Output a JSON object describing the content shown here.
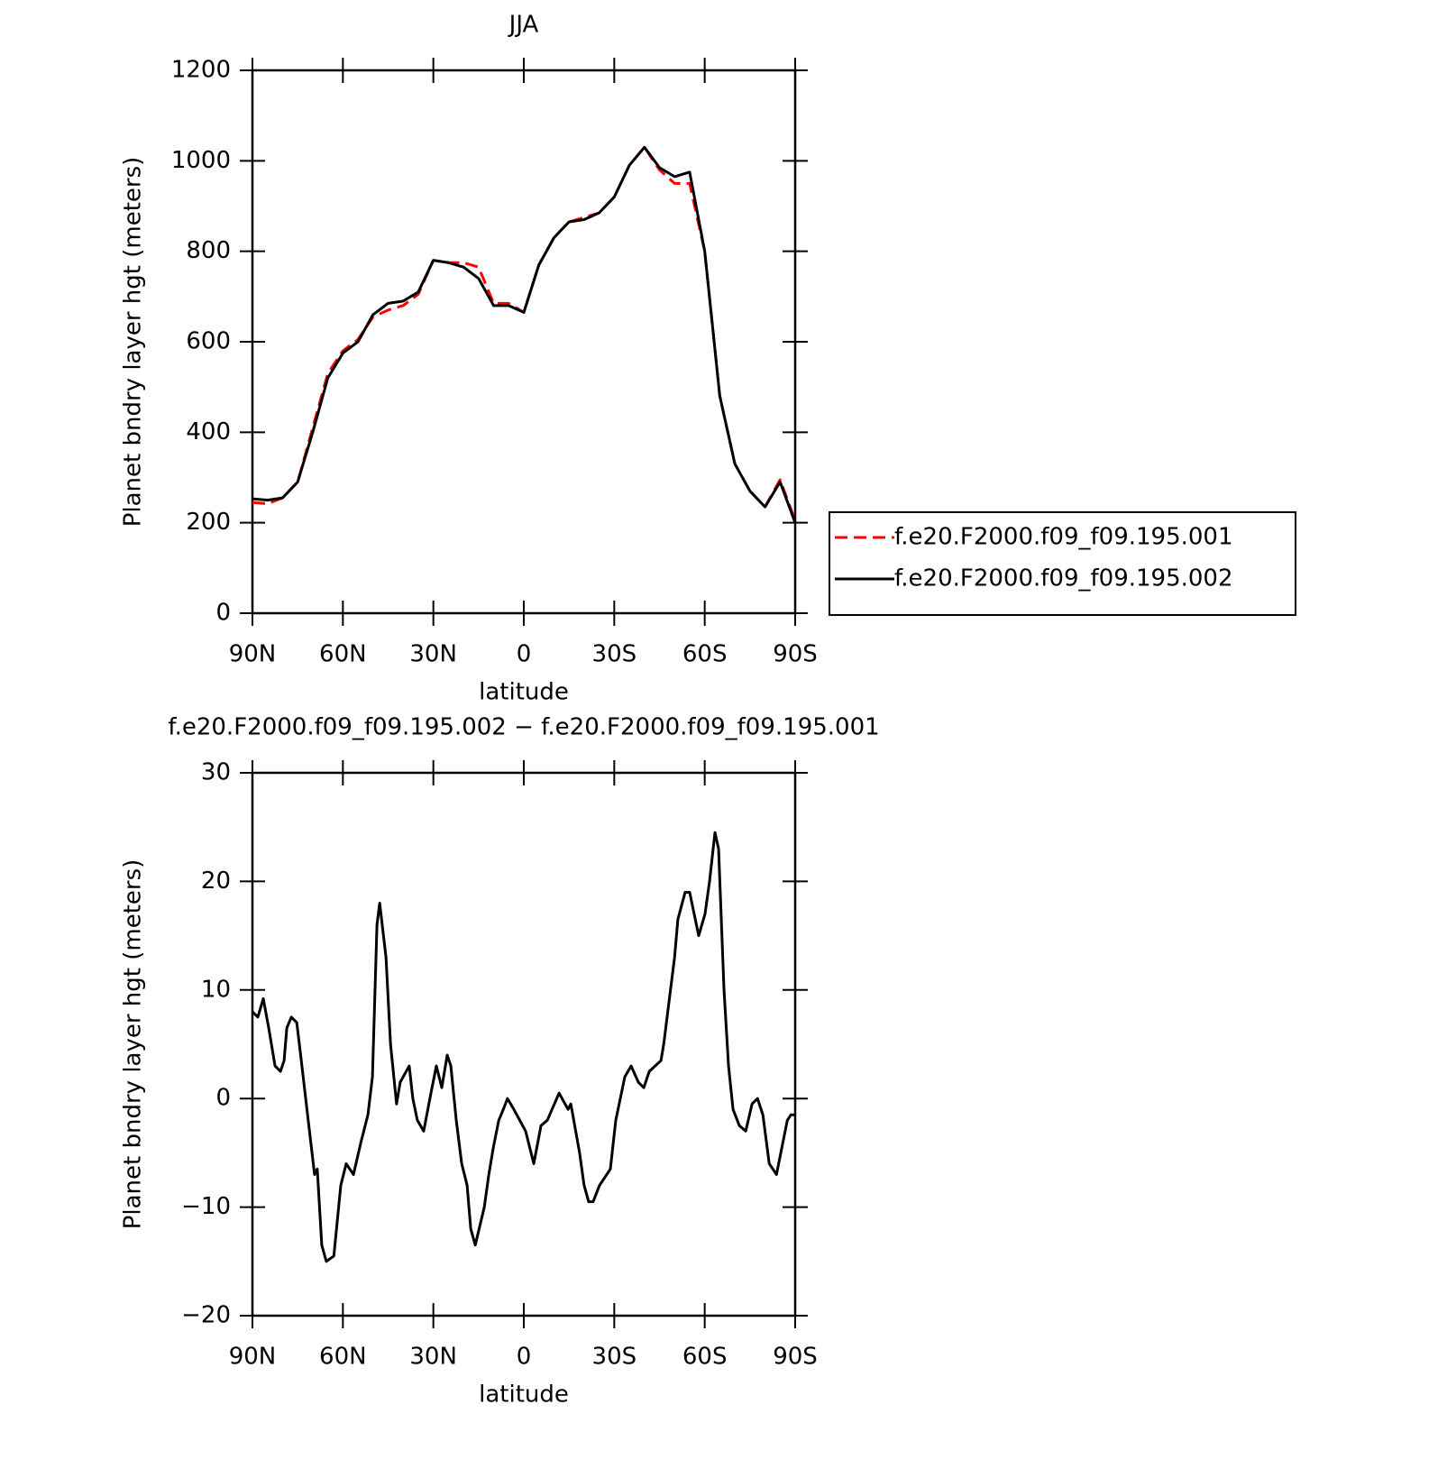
{
  "chart_data": [
    {
      "type": "line",
      "title": "JJA",
      "x_label": "latitude",
      "y_label": "Planet bndry layer hgt (meters)",
      "xlim": [
        90,
        -90
      ],
      "xticks": [
        {
          "value": 90,
          "label": "90N"
        },
        {
          "value": 60,
          "label": "60N"
        },
        {
          "value": 30,
          "label": "30N"
        },
        0,
        {
          "value": -30,
          "label": "30S"
        },
        {
          "value": -60,
          "label": "60S"
        },
        {
          "value": -90,
          "label": "90S"
        }
      ],
      "ylim": [
        0,
        1200
      ],
      "yticks": [
        0,
        200,
        400,
        600,
        800,
        1000,
        1200
      ],
      "legend": "right",
      "x": [
        90,
        85,
        80,
        75,
        70,
        65,
        60,
        55,
        50,
        45,
        40,
        35,
        30,
        25,
        20,
        15,
        10,
        5,
        0,
        -5,
        -10,
        -15,
        -20,
        -25,
        -30,
        -35,
        -40,
        -45,
        -50,
        -55,
        -60,
        -65,
        -70,
        -75,
        -80,
        -85,
        -90
      ],
      "series": [
        {
          "name": "f.e20.F2000.f09_f09.195.001",
          "color": "#ff0000",
          "linestyle": "dashed",
          "values": [
            245,
            242,
            255,
            290,
            410,
            530,
            580,
            605,
            655,
            670,
            680,
            705,
            780,
            775,
            775,
            765,
            685,
            685,
            665,
            770,
            830,
            865,
            875,
            885,
            920,
            990,
            1030,
            980,
            950,
            950,
            800,
            480,
            330,
            270,
            235,
            295,
            205
          ]
        },
        {
          "name": "f.e20.F2000.f09_f09.195.002",
          "color": "#000000",
          "linestyle": "solid",
          "values": [
            253,
            250,
            255,
            290,
            400,
            520,
            575,
            600,
            660,
            685,
            690,
            710,
            780,
            775,
            765,
            740,
            680,
            680,
            665,
            770,
            830,
            865,
            870,
            885,
            920,
            990,
            1030,
            985,
            965,
            975,
            800,
            480,
            330,
            270,
            235,
            290,
            200
          ]
        }
      ]
    },
    {
      "type": "line",
      "title": "f.e20.F2000.f09_f09.195.002 − f.e20.F2000.f09_f09.195.001",
      "x_label": "latitude",
      "y_label": "Planet bndry layer hgt (meters)",
      "xlim": [
        90,
        -90
      ],
      "xticks": [
        {
          "value": 90,
          "label": "90N"
        },
        {
          "value": 60,
          "label": "60N"
        },
        {
          "value": 30,
          "label": "30N"
        },
        0,
        {
          "value": -30,
          "label": "30S"
        },
        {
          "value": -60,
          "label": "60S"
        },
        {
          "value": -90,
          "label": "90S"
        }
      ],
      "ylim": [
        -20,
        30
      ],
      "yticks": [
        {
          "value": -20,
          "label": "−20"
        },
        {
          "value": -10,
          "label": "−10"
        },
        0,
        10,
        20,
        30
      ],
      "x": [
        90,
        88.2,
        86.4,
        84.6,
        82.5,
        80.7,
        79.5,
        78.6,
        77.1,
        75.3,
        73.8,
        71.5,
        69.4,
        68.5,
        67,
        65.5,
        63,
        60.7,
        58.9,
        56.5,
        54,
        51.7,
        50.2,
        48.7,
        47.8,
        45.7,
        44.2,
        42.2,
        41,
        38,
        36.8,
        35.3,
        33.2,
        30.8,
        29,
        27.2,
        25.4,
        24.2,
        22.4,
        20.6,
        18.8,
        17.6,
        16.1,
        13.1,
        11.6,
        10.1,
        8.3,
        6.8,
        5.4,
        3.3,
        -0.6,
        -3.3,
        -5.7,
        -7.8,
        -11.7,
        -14.7,
        -15.6,
        -18.5,
        -20,
        -21.5,
        -23,
        -25.1,
        -28.7,
        -30.5,
        -33.5,
        -35.6,
        -38,
        -39.8,
        -41.6,
        -45.5,
        -46.4,
        -48.2,
        -50,
        -51.1,
        -53.5,
        -55,
        -58,
        -60.1,
        -61.6,
        -63.4,
        -64.6,
        -66.4,
        -67.9,
        -69.4,
        -71.5,
        -73.6,
        -75.7,
        -77.5,
        -79.3,
        -81.4,
        -83.8,
        -87.4,
        -88.6,
        -90
      ],
      "series": [
        {
          "color": "#000000",
          "linestyle": "solid",
          "values": [
            8,
            7.5,
            9.2,
            6.5,
            3,
            2.5,
            3.5,
            6.5,
            7.5,
            7,
            3.5,
            -2,
            -7,
            -6.5,
            -13.5,
            -15,
            -14.5,
            -8,
            -6,
            -7,
            -4,
            -1.5,
            2,
            16,
            18,
            13,
            5,
            -0.5,
            1.5,
            3,
            0,
            -2,
            -3,
            0.5,
            3,
            1,
            4,
            3,
            -2,
            -6,
            -8,
            -12,
            -13.5,
            -10,
            -7,
            -4.5,
            -2,
            -1,
            0,
            -1,
            -3,
            -6,
            -2.5,
            -2,
            0.5,
            -1,
            -0.5,
            -5,
            -8,
            -9.5,
            -9.5,
            -8,
            -6.5,
            -2,
            2,
            3,
            1.5,
            1,
            2.5,
            3.5,
            5,
            9,
            13,
            16.5,
            19,
            19,
            15,
            17,
            20,
            24.5,
            23,
            10,
            3,
            -1,
            -2.5,
            -3,
            -0.5,
            0,
            -1.5,
            -6,
            -7,
            -2,
            -1.5,
            -1.5
          ]
        }
      ]
    }
  ]
}
